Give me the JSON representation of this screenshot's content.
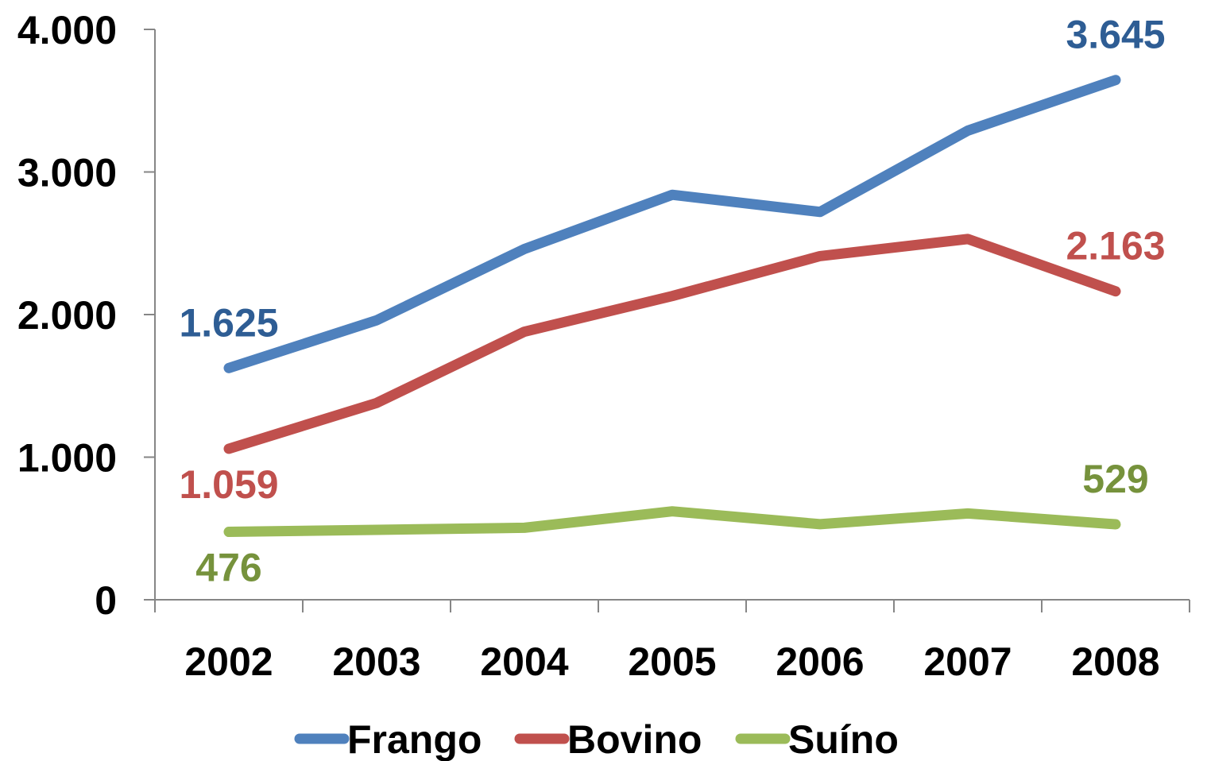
{
  "chart_data": {
    "type": "line",
    "categories": [
      "2002",
      "2003",
      "2004",
      "2005",
      "2006",
      "2007",
      "2008"
    ],
    "ylim": [
      0,
      4000
    ],
    "y_ticks": [
      0,
      1000,
      2000,
      3000,
      4000
    ],
    "y_tick_labels": [
      "0",
      "1.000",
      "2.000",
      "3.000",
      "4.000"
    ],
    "grid": false,
    "legend_position": "bottom",
    "series": [
      {
        "name": "Frango",
        "color": "#4F81BD",
        "label_color": "#2E5D94",
        "values": [
          1625,
          1960,
          2460,
          2840,
          2720,
          3290,
          3645
        ],
        "labels": [
          {
            "index": 0,
            "text": "1.625",
            "position": "above"
          },
          {
            "index": 6,
            "text": "3.645",
            "position": "above"
          }
        ]
      },
      {
        "name": "Bovino",
        "color": "#C0504D",
        "label_color": "#C0504D",
        "values": [
          1059,
          1380,
          1880,
          2130,
          2410,
          2530,
          2163
        ],
        "labels": [
          {
            "index": 0,
            "text": "1.059",
            "position": "below"
          },
          {
            "index": 6,
            "text": "2.163",
            "position": "above"
          }
        ]
      },
      {
        "name": "Suíno",
        "color": "#9BBB59",
        "label_color": "#76923C",
        "values": [
          476,
          490,
          505,
          620,
          530,
          605,
          529
        ],
        "labels": [
          {
            "index": 0,
            "text": "476",
            "position": "below"
          },
          {
            "index": 6,
            "text": "529",
            "position": "above"
          }
        ]
      }
    ]
  }
}
